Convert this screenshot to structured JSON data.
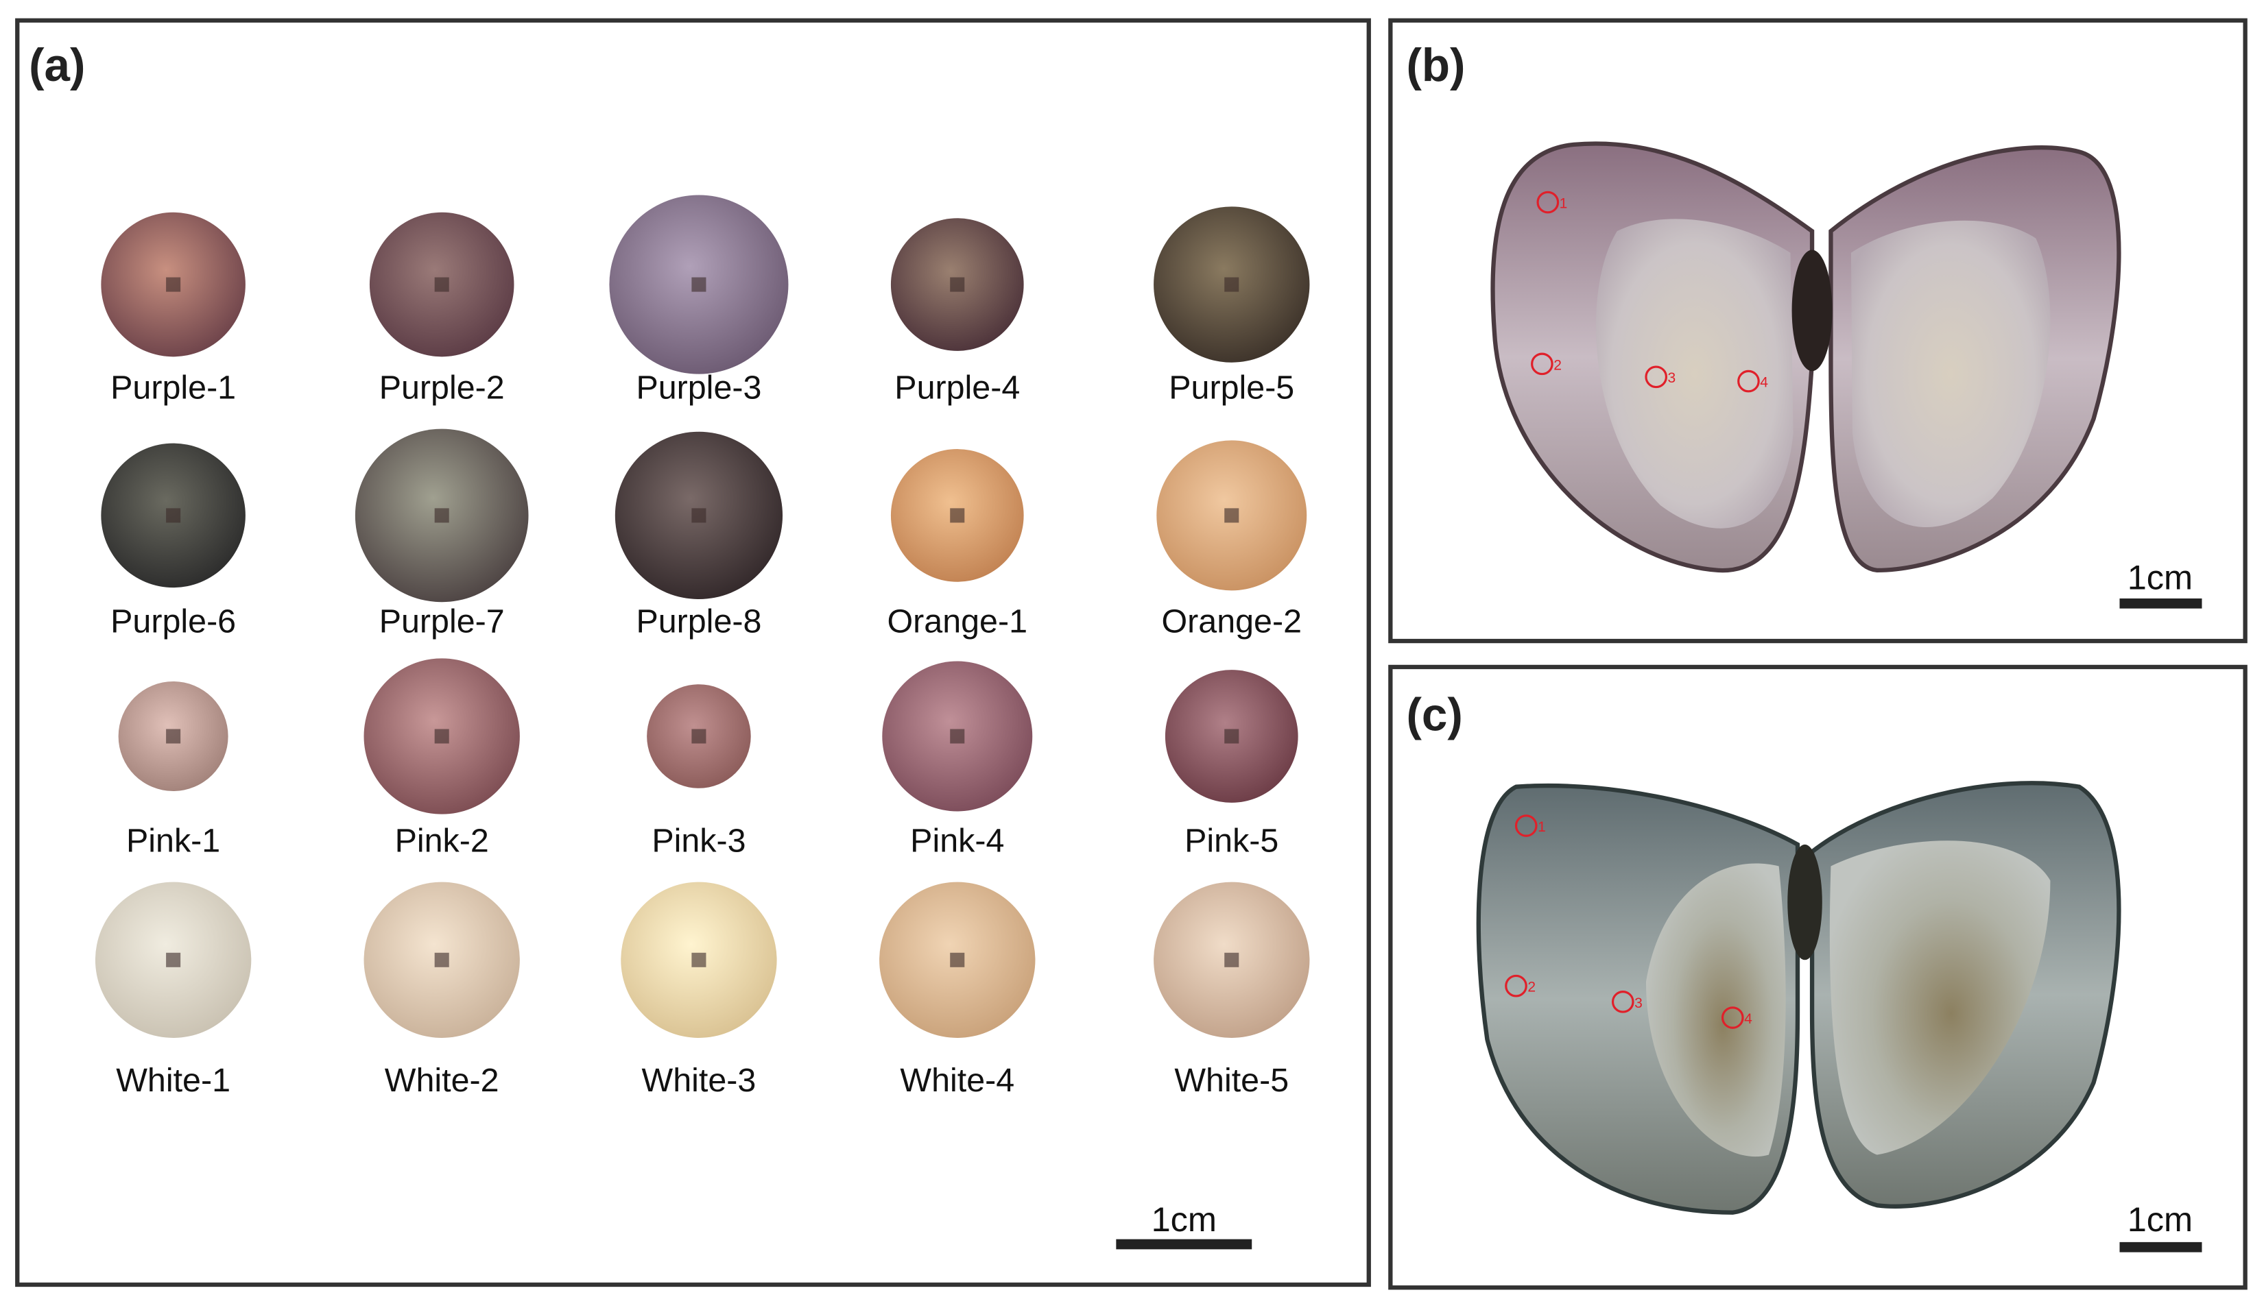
{
  "panel_a": {
    "label": "(a)",
    "pearls": [
      "Purple-1",
      "Purple-2",
      "Purple-3",
      "Purple-4",
      "Purple-5",
      "Purple-6",
      "Purple-7",
      "Purple-8",
      "Orange-1",
      "Orange-2",
      "Pink-1",
      "Pink-2",
      "Pink-3",
      "Pink-4",
      "Pink-5",
      "White-1",
      "White-2",
      "White-3",
      "White-4",
      "White-5"
    ],
    "scale": "1cm"
  },
  "panel_b": {
    "label": "(b)",
    "points": [
      "1",
      "2",
      "3",
      "4"
    ],
    "scale": "1cm"
  },
  "panel_c": {
    "label": "(c)",
    "points": [
      "1",
      "2",
      "3",
      "4"
    ],
    "scale": "1cm"
  }
}
